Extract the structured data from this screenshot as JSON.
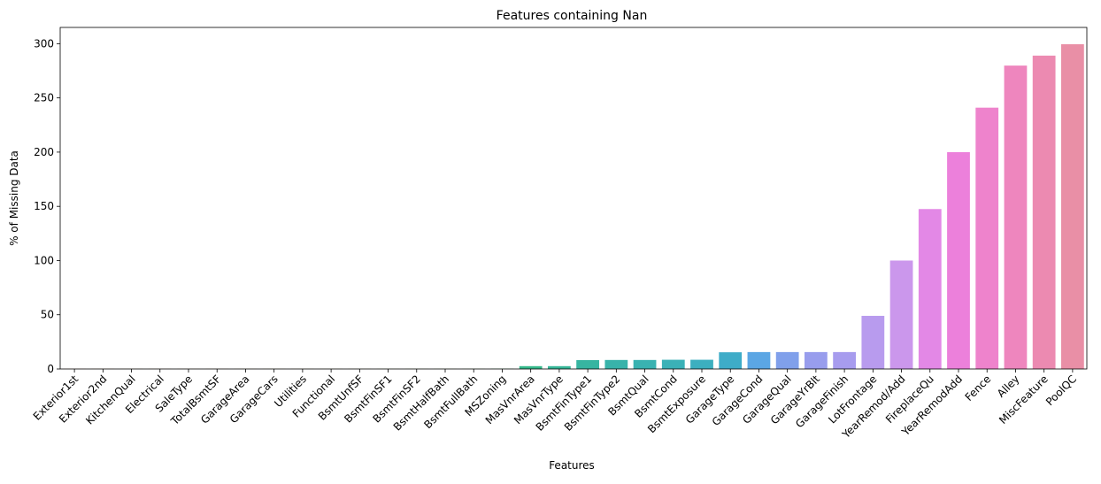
{
  "chart_data": {
    "type": "bar",
    "title": "Features containing Nan",
    "xlabel": "Features",
    "ylabel": "% of Missing Data",
    "ylim": [
      0,
      315
    ],
    "yticks": [
      0,
      50,
      100,
      150,
      200,
      250,
      300
    ],
    "grid": false,
    "legend": "none",
    "categories": [
      "Exterior1st",
      "Exterior2nd",
      "KitchenQual",
      "Electrical",
      "SaleType",
      "TotalBsmtSF",
      "GarageArea",
      "GarageCars",
      "Utilities",
      "Functional",
      "BsmtUnfSF",
      "BsmtFinSF1",
      "BsmtFinSF2",
      "BsmtHalfBath",
      "BsmtFullBath",
      "MSZoning",
      "MasVnrArea",
      "MasVnrType",
      "BsmtFinType1",
      "BsmtFinType2",
      "BsmtQual",
      "BsmtCond",
      "BsmtExposure",
      "GarageType",
      "GarageCond",
      "GarageQual",
      "GarageYrBlt",
      "GarageFinish",
      "LotFrontage",
      "YearRemod/Add",
      "FireplaceQu",
      "YearRemodAdd",
      "Fence",
      "Alley",
      "MiscFeature",
      "PoolQC"
    ],
    "values": [
      0.1,
      0.1,
      0.1,
      0.1,
      0.1,
      0.1,
      0.1,
      0.1,
      0.1,
      0.1,
      0.1,
      0.1,
      0.1,
      0.1,
      0.1,
      0.2,
      2.6,
      2.6,
      8.2,
      8.3,
      8.3,
      8.5,
      8.5,
      15.4,
      15.6,
      15.6,
      15.6,
      15.6,
      49.0,
      100.0,
      147.5,
      200.0,
      241.0,
      279.8,
      289.0,
      299.5
    ],
    "colors": [
      "#f37651",
      "#f37b31",
      "#e58a31",
      "#dc9131",
      "#d59731",
      "#cd9b31",
      "#c69f31",
      "#bea531",
      "#b6a831",
      "#aeab31",
      "#a2ae31",
      "#97b131",
      "#89b431",
      "#79b731",
      "#5cb931",
      "#33bb5c",
      "#35b88a",
      "#36b697",
      "#37b5a1",
      "#38b3aa",
      "#39b2b1",
      "#3ab1b7",
      "#3cafbf",
      "#3eacc8",
      "#5ba6e4",
      "#80a0eb",
      "#989ded",
      "#a79cee",
      "#b89bee",
      "#cb97ec",
      "#e388e6",
      "#ec80db",
      "#ee83cc",
      "#ee86be",
      "#ec8ab1",
      "#e98fa6"
    ]
  }
}
